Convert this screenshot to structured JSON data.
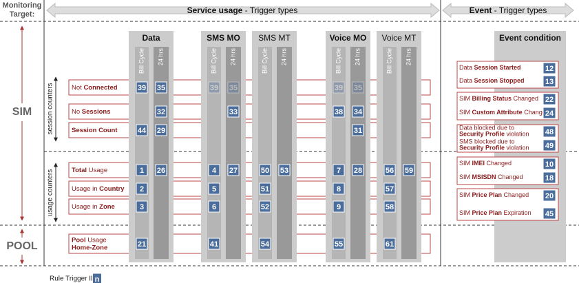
{
  "header": {
    "monitoring_target": [
      "Monitoring",
      "Target:"
    ],
    "service": [
      {
        "t": "Service usage",
        "b": true
      },
      {
        "t": " - Trigger types",
        "b": false
      }
    ],
    "event": [
      {
        "t": "Event",
        "b": true
      },
      {
        "t": " - Trigger types",
        "b": false
      }
    ]
  },
  "targets": {
    "sim": "SIM",
    "pool": "POOL"
  },
  "counter_groups": {
    "session": "session counters",
    "usage": "usage counters"
  },
  "columns": [
    {
      "name": "Data",
      "bold": true
    },
    {
      "name": "SMS MO",
      "bold": true
    },
    {
      "name": "SMS MT",
      "bold": false
    },
    {
      "name": "Voice MO",
      "bold": true
    },
    {
      "name": "Voice MT",
      "bold": false
    }
  ],
  "subcolumns": [
    "Bill Cycle",
    "24 hrs"
  ],
  "rows": [
    {
      "label": [
        [
          {
            "t": "Not ",
            "b": false
          },
          {
            "t": "Connected",
            "b": true
          }
        ]
      ],
      "ids": [
        39,
        35,
        39,
        35,
        null,
        null,
        39,
        35,
        null,
        null
      ],
      "faded": [
        2,
        3,
        6,
        7
      ]
    },
    {
      "label": [
        [
          {
            "t": "No ",
            "b": false
          },
          {
            "t": "Sessions",
            "b": true
          }
        ]
      ],
      "ids": [
        null,
        32,
        null,
        33,
        null,
        null,
        38,
        34,
        null,
        null
      ]
    },
    {
      "label": [
        [
          {
            "t": "Session Count",
            "b": true
          }
        ]
      ],
      "ids": [
        44,
        29,
        null,
        null,
        null,
        null,
        null,
        31,
        null,
        null
      ]
    },
    {
      "label": [
        [
          {
            "t": "Total",
            "b": true
          },
          {
            "t": " Usage",
            "b": false
          }
        ]
      ],
      "ids": [
        1,
        26,
        4,
        27,
        50,
        53,
        7,
        28,
        56,
        59
      ]
    },
    {
      "label": [
        [
          {
            "t": "Usage in ",
            "b": false
          },
          {
            "t": "Country",
            "b": true
          }
        ]
      ],
      "ids": [
        2,
        null,
        5,
        null,
        51,
        null,
        8,
        null,
        57,
        null
      ]
    },
    {
      "label": [
        [
          {
            "t": "Usage in ",
            "b": false
          },
          {
            "t": "Zone",
            "b": true
          }
        ]
      ],
      "ids": [
        3,
        null,
        6,
        null,
        52,
        null,
        9,
        null,
        58,
        null
      ]
    },
    {
      "label": [
        [
          {
            "t": "Pool",
            "b": true
          },
          {
            "t": " Usage",
            "b": false
          }
        ],
        [
          {
            "t": "Home-Zone",
            "b": true
          }
        ]
      ],
      "ids": [
        21,
        null,
        41,
        null,
        54,
        null,
        55,
        null,
        61,
        null
      ]
    }
  ],
  "event_condition": {
    "title": "Event condition",
    "items": [
      {
        "label": [
          [
            {
              "t": "Data ",
              "b": false
            },
            {
              "t": "Session Started",
              "b": true
            }
          ]
        ],
        "id": 12
      },
      {
        "label": [
          [
            {
              "t": "Data ",
              "b": false
            },
            {
              "t": "Session Stopped",
              "b": true
            }
          ]
        ],
        "id": 13
      },
      {
        "label": [
          [
            {
              "t": "SIM ",
              "b": false
            },
            {
              "t": "Billing Status",
              "b": true
            },
            {
              "t": " Changed",
              "b": false
            }
          ]
        ],
        "id": 22
      },
      {
        "label": [
          [
            {
              "t": "SIM ",
              "b": false
            },
            {
              "t": "Custom Attribute",
              "b": true
            },
            {
              "t": " Change",
              "b": false
            }
          ]
        ],
        "id": 24
      },
      {
        "label": [
          [
            {
              "t": "Data blocked due to",
              "b": false
            }
          ],
          [
            {
              "t": "Security Profile",
              "b": true
            },
            {
              "t": " violation",
              "b": false
            }
          ]
        ],
        "id": 48
      },
      {
        "label": [
          [
            {
              "t": "SMS blocked due to",
              "b": false
            }
          ],
          [
            {
              "t": "Security Profile",
              "b": true
            },
            {
              "t": " violation",
              "b": false
            }
          ]
        ],
        "id": 49
      },
      {
        "label": [
          [
            {
              "t": "SIM ",
              "b": false
            },
            {
              "t": "IMEI",
              "b": true
            },
            {
              "t": " Changed",
              "b": false
            }
          ]
        ],
        "id": 10
      },
      {
        "label": [
          [
            {
              "t": "SIM ",
              "b": false
            },
            {
              "t": "MSISDN",
              "b": true
            },
            {
              "t": " Changed",
              "b": false
            }
          ]
        ],
        "id": 18
      },
      {
        "label": [
          [
            {
              "t": "SIM ",
              "b": false
            },
            {
              "t": "Price Plan",
              "b": true
            },
            {
              "t": " Changed",
              "b": false
            }
          ]
        ],
        "id": 20
      },
      {
        "label": [
          [
            {
              "t": "SIM ",
              "b": false
            },
            {
              "t": "Price Plan",
              "b": true
            },
            {
              "t": " Expiration",
              "b": false
            }
          ]
        ],
        "id": 45
      }
    ]
  },
  "legend": {
    "label": "Rule Trigger ID:",
    "symbol": "n"
  }
}
